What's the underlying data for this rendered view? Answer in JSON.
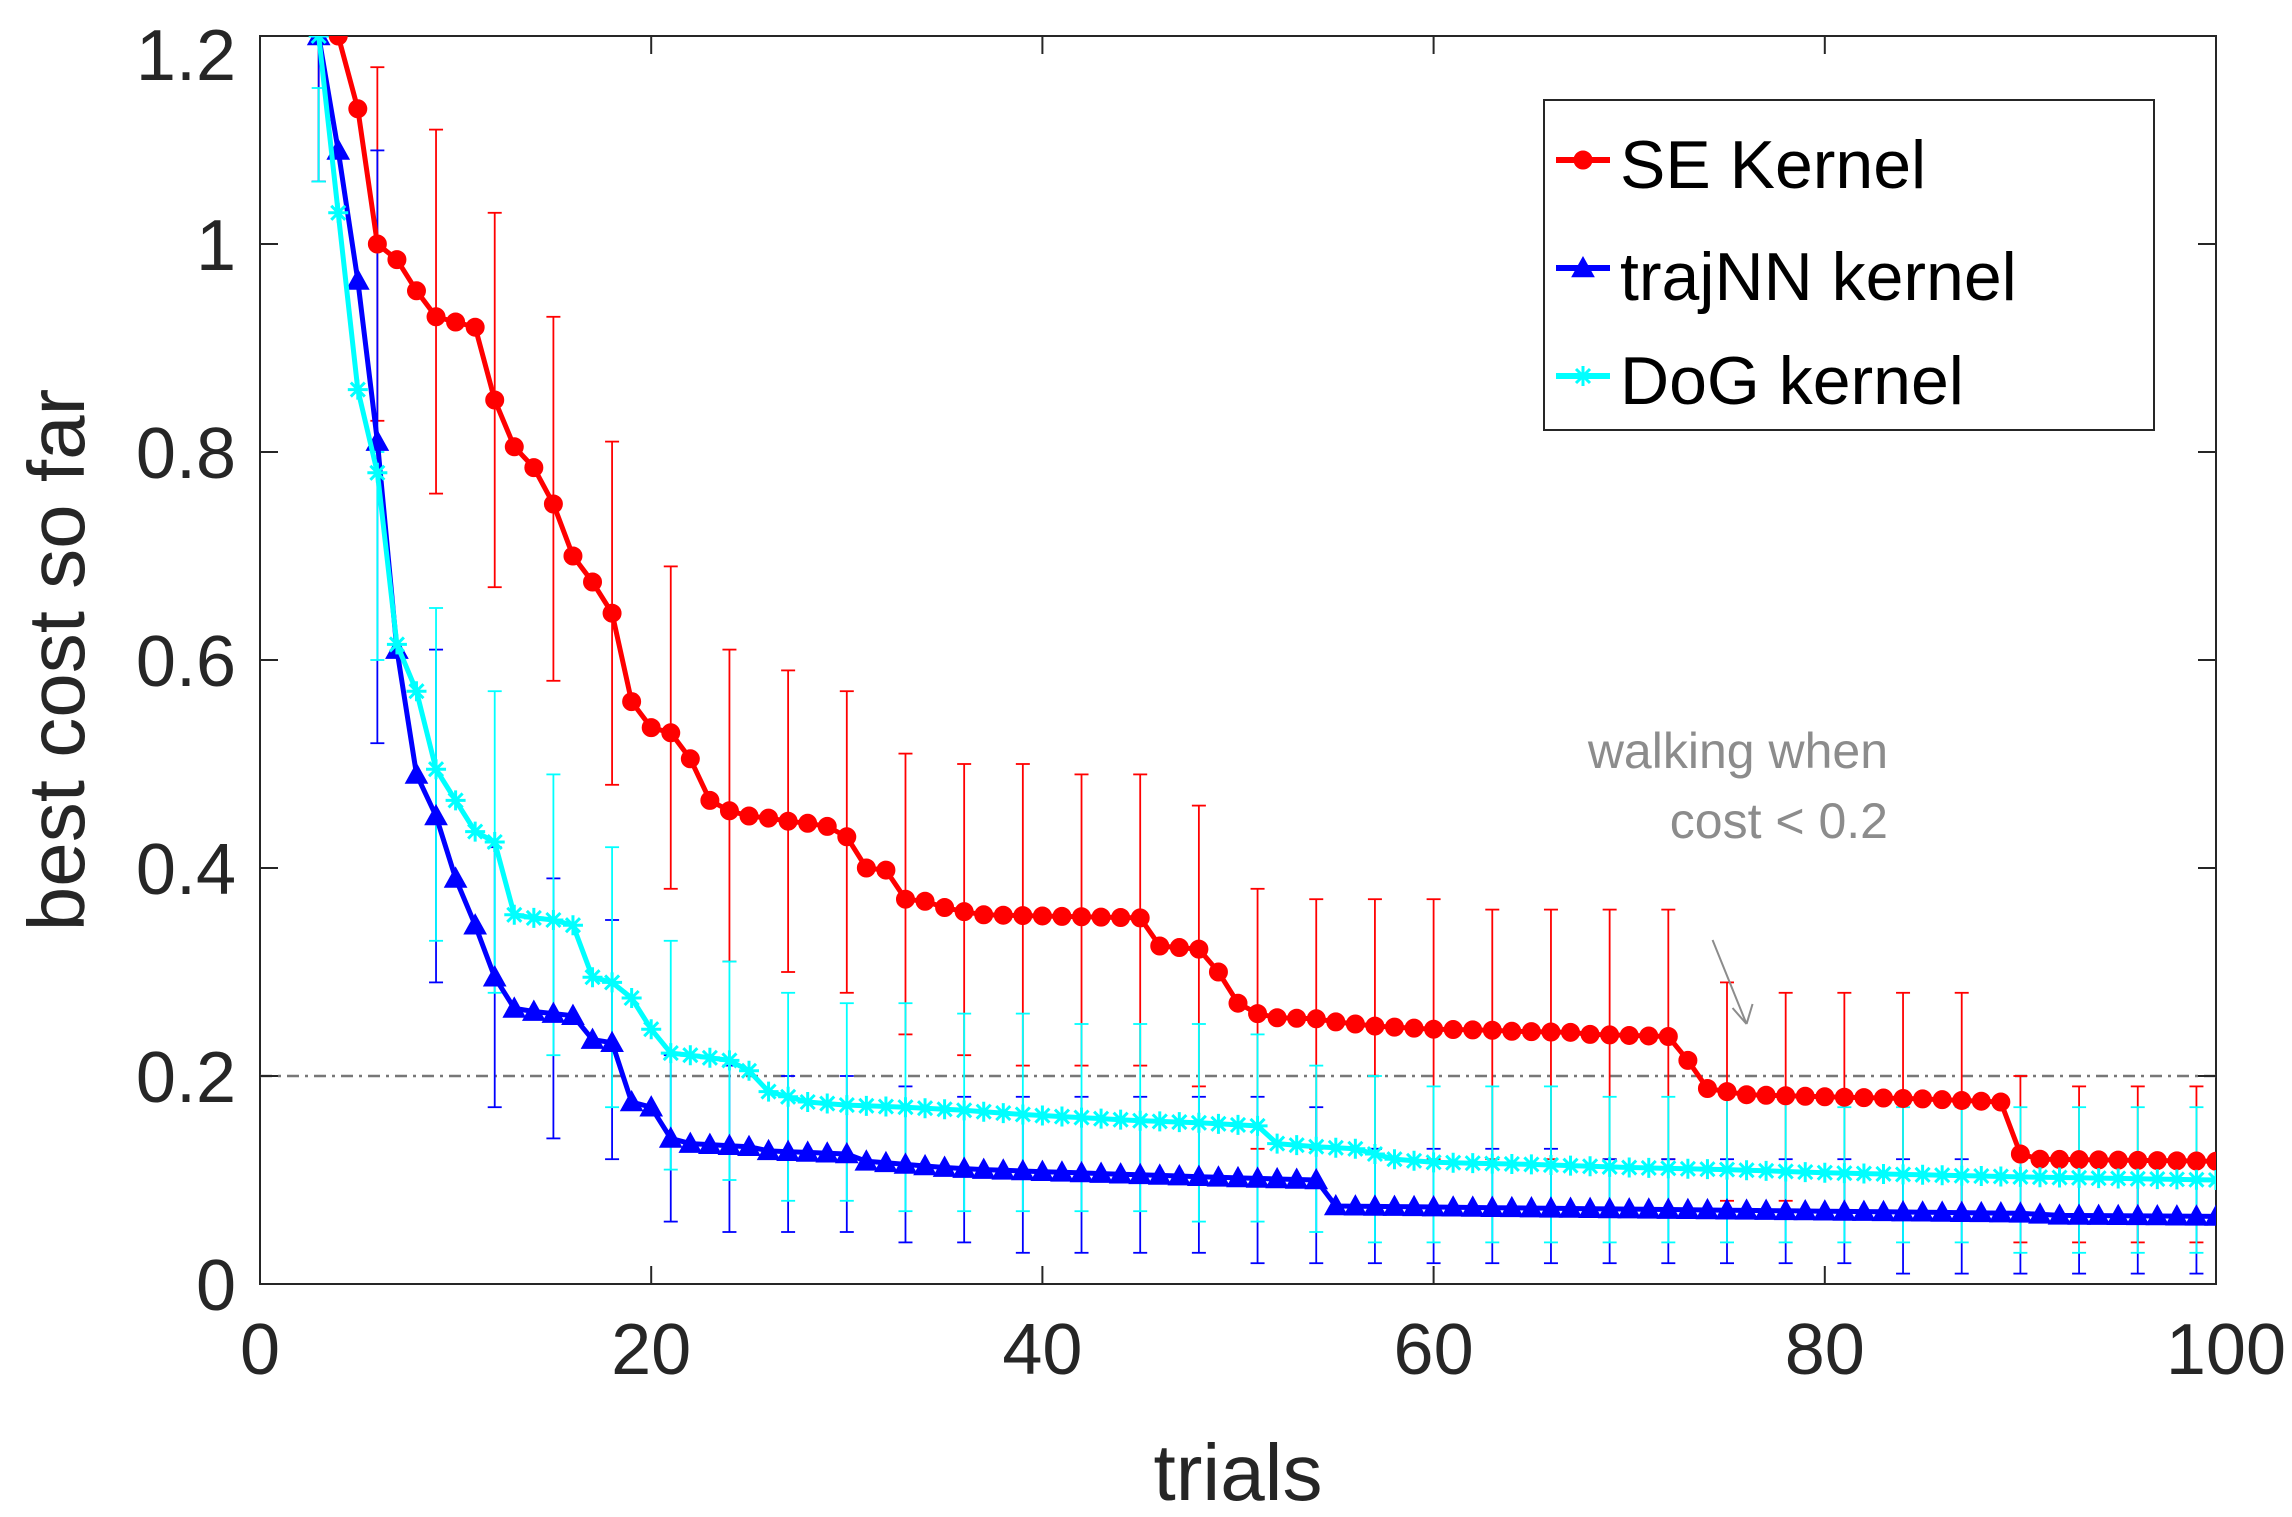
{
  "chart_data": {
    "type": "line",
    "title": "",
    "xlabel": "trials",
    "ylabel": "best cost so far",
    "xlim": [
      0,
      100
    ],
    "ylim": [
      0,
      1.2
    ],
    "xticks": [
      0,
      20,
      40,
      60,
      80,
      100
    ],
    "xtick_labels": [
      "0",
      "20",
      "40",
      "60",
      "80",
      "100"
    ],
    "yticks": [
      0,
      0.2,
      0.4,
      0.6,
      0.8,
      1,
      1.2
    ],
    "ytick_labels": [
      "0",
      "0.2",
      "0.4",
      "0.6",
      "0.8",
      "1",
      "1.2"
    ],
    "grid": false,
    "legend_position": "top-right",
    "reference_line": {
      "y": 0.2,
      "color": "#777777",
      "style": "dash-dot"
    },
    "annotation": {
      "lines": [
        "walking when",
        "cost < 0.2"
      ],
      "points_to": {
        "x": 76,
        "y": 0.25
      },
      "color": "#8c8c8c"
    },
    "series": [
      {
        "name": "SE Kernel",
        "color": "#ff0000",
        "marker": "circle",
        "keypoints": [
          [
            3,
            1.35
          ],
          [
            4,
            1.2
          ],
          [
            5,
            1.13
          ],
          [
            6,
            1.0
          ],
          [
            7,
            0.985
          ],
          [
            8,
            0.955
          ],
          [
            9,
            0.93
          ],
          [
            10,
            0.925
          ],
          [
            11,
            0.92
          ],
          [
            12,
            0.85
          ],
          [
            13,
            0.805
          ],
          [
            14,
            0.785
          ],
          [
            15,
            0.75
          ],
          [
            16,
            0.7
          ],
          [
            17,
            0.675
          ],
          [
            18,
            0.645
          ],
          [
            19,
            0.56
          ],
          [
            20,
            0.535
          ],
          [
            21,
            0.53
          ],
          [
            22,
            0.505
          ],
          [
            23,
            0.465
          ],
          [
            24,
            0.455
          ],
          [
            25,
            0.45
          ],
          [
            26,
            0.448
          ],
          [
            27,
            0.445
          ],
          [
            28,
            0.443
          ],
          [
            29,
            0.44
          ],
          [
            30,
            0.43
          ],
          [
            31,
            0.4
          ],
          [
            32,
            0.398
          ],
          [
            33,
            0.37
          ],
          [
            34,
            0.368
          ],
          [
            35,
            0.362
          ],
          [
            36,
            0.358
          ],
          [
            37,
            0.355
          ],
          [
            45,
            0.352
          ],
          [
            46,
            0.325
          ],
          [
            48,
            0.322
          ],
          [
            49,
            0.3
          ],
          [
            50,
            0.27
          ],
          [
            51,
            0.26
          ],
          [
            52,
            0.256
          ],
          [
            54,
            0.255
          ],
          [
            55,
            0.252
          ],
          [
            56,
            0.25
          ],
          [
            57,
            0.248
          ],
          [
            59,
            0.246
          ],
          [
            60,
            0.245
          ],
          [
            63,
            0.244
          ],
          [
            64,
            0.243
          ],
          [
            67,
            0.242
          ],
          [
            68,
            0.24
          ],
          [
            72,
            0.238
          ],
          [
            73,
            0.215
          ],
          [
            74,
            0.188
          ],
          [
            75,
            0.185
          ],
          [
            76,
            0.182
          ],
          [
            80,
            0.18
          ],
          [
            85,
            0.178
          ],
          [
            89,
            0.175
          ],
          [
            90,
            0.125
          ],
          [
            91,
            0.12
          ],
          [
            100,
            0.118
          ]
        ],
        "error_bars": [
          {
            "x": 3,
            "lo": 1.06,
            "hi": 1.42
          },
          {
            "x": 6,
            "lo": 0.83,
            "hi": 1.17
          },
          {
            "x": 9,
            "lo": 0.76,
            "hi": 1.11
          },
          {
            "x": 12,
            "lo": 0.67,
            "hi": 1.03
          },
          {
            "x": 15,
            "lo": 0.58,
            "hi": 0.93
          },
          {
            "x": 18,
            "lo": 0.48,
            "hi": 0.81
          },
          {
            "x": 21,
            "lo": 0.38,
            "hi": 0.69
          },
          {
            "x": 24,
            "lo": 0.31,
            "hi": 0.61
          },
          {
            "x": 27,
            "lo": 0.3,
            "hi": 0.59
          },
          {
            "x": 30,
            "lo": 0.28,
            "hi": 0.57
          },
          {
            "x": 33,
            "lo": 0.24,
            "hi": 0.51
          },
          {
            "x": 36,
            "lo": 0.22,
            "hi": 0.5
          },
          {
            "x": 39,
            "lo": 0.21,
            "hi": 0.5
          },
          {
            "x": 42,
            "lo": 0.21,
            "hi": 0.49
          },
          {
            "x": 45,
            "lo": 0.21,
            "hi": 0.49
          },
          {
            "x": 48,
            "lo": 0.19,
            "hi": 0.46
          },
          {
            "x": 51,
            "lo": 0.13,
            "hi": 0.38
          },
          {
            "x": 54,
            "lo": 0.13,
            "hi": 0.37
          },
          {
            "x": 57,
            "lo": 0.13,
            "hi": 0.37
          },
          {
            "x": 60,
            "lo": 0.12,
            "hi": 0.37
          },
          {
            "x": 63,
            "lo": 0.12,
            "hi": 0.36
          },
          {
            "x": 66,
            "lo": 0.12,
            "hi": 0.36
          },
          {
            "x": 69,
            "lo": 0.12,
            "hi": 0.36
          },
          {
            "x": 72,
            "lo": 0.12,
            "hi": 0.36
          },
          {
            "x": 75,
            "lo": 0.08,
            "hi": 0.29
          },
          {
            "x": 78,
            "lo": 0.08,
            "hi": 0.28
          },
          {
            "x": 81,
            "lo": 0.07,
            "hi": 0.28
          },
          {
            "x": 84,
            "lo": 0.07,
            "hi": 0.28
          },
          {
            "x": 87,
            "lo": 0.07,
            "hi": 0.28
          },
          {
            "x": 90,
            "lo": 0.04,
            "hi": 0.2
          },
          {
            "x": 93,
            "lo": 0.04,
            "hi": 0.19
          },
          {
            "x": 96,
            "lo": 0.04,
            "hi": 0.19
          },
          {
            "x": 99,
            "lo": 0.04,
            "hi": 0.19
          }
        ]
      },
      {
        "name": "trajNN kernel",
        "color": "#0000ff",
        "marker": "triangle",
        "keypoints": [
          [
            3,
            1.2
          ],
          [
            4,
            1.09
          ],
          [
            5,
            0.965
          ],
          [
            6,
            0.81
          ],
          [
            7,
            0.61
          ],
          [
            8,
            0.49
          ],
          [
            9,
            0.45
          ],
          [
            10,
            0.39
          ],
          [
            11,
            0.345
          ],
          [
            12,
            0.295
          ],
          [
            13,
            0.265
          ],
          [
            14,
            0.262
          ],
          [
            15,
            0.26
          ],
          [
            16,
            0.258
          ],
          [
            17,
            0.235
          ],
          [
            18,
            0.232
          ],
          [
            19,
            0.175
          ],
          [
            20,
            0.17
          ],
          [
            21,
            0.14
          ],
          [
            22,
            0.135
          ],
          [
            25,
            0.132
          ],
          [
            26,
            0.128
          ],
          [
            30,
            0.125
          ],
          [
            31,
            0.118
          ],
          [
            33,
            0.115
          ],
          [
            35,
            0.112
          ],
          [
            37,
            0.11
          ],
          [
            40,
            0.108
          ],
          [
            45,
            0.105
          ],
          [
            50,
            0.102
          ],
          [
            54,
            0.1
          ],
          [
            55,
            0.075
          ],
          [
            60,
            0.074
          ],
          [
            70,
            0.072
          ],
          [
            80,
            0.07
          ],
          [
            90,
            0.068
          ],
          [
            92,
            0.066
          ],
          [
            100,
            0.065
          ]
        ],
        "error_bars": [
          {
            "x": 3,
            "lo": 1.06,
            "hi": 1.33
          },
          {
            "x": 6,
            "lo": 0.52,
            "hi": 1.09
          },
          {
            "x": 9,
            "lo": 0.29,
            "hi": 0.61
          },
          {
            "x": 12,
            "lo": 0.17,
            "hi": 0.42
          },
          {
            "x": 15,
            "lo": 0.14,
            "hi": 0.39
          },
          {
            "x": 18,
            "lo": 0.12,
            "hi": 0.35
          },
          {
            "x": 21,
            "lo": 0.06,
            "hi": 0.22
          },
          {
            "x": 24,
            "lo": 0.05,
            "hi": 0.21
          },
          {
            "x": 27,
            "lo": 0.05,
            "hi": 0.2
          },
          {
            "x": 30,
            "lo": 0.05,
            "hi": 0.2
          },
          {
            "x": 33,
            "lo": 0.04,
            "hi": 0.19
          },
          {
            "x": 36,
            "lo": 0.04,
            "hi": 0.18
          },
          {
            "x": 39,
            "lo": 0.03,
            "hi": 0.18
          },
          {
            "x": 42,
            "lo": 0.03,
            "hi": 0.18
          },
          {
            "x": 45,
            "lo": 0.03,
            "hi": 0.18
          },
          {
            "x": 48,
            "lo": 0.03,
            "hi": 0.18
          },
          {
            "x": 51,
            "lo": 0.02,
            "hi": 0.18
          },
          {
            "x": 54,
            "lo": 0.02,
            "hi": 0.17
          },
          {
            "x": 57,
            "lo": 0.02,
            "hi": 0.13
          },
          {
            "x": 60,
            "lo": 0.02,
            "hi": 0.13
          },
          {
            "x": 63,
            "lo": 0.02,
            "hi": 0.13
          },
          {
            "x": 66,
            "lo": 0.02,
            "hi": 0.13
          },
          {
            "x": 69,
            "lo": 0.02,
            "hi": 0.12
          },
          {
            "x": 72,
            "lo": 0.02,
            "hi": 0.12
          },
          {
            "x": 75,
            "lo": 0.02,
            "hi": 0.12
          },
          {
            "x": 78,
            "lo": 0.02,
            "hi": 0.12
          },
          {
            "x": 81,
            "lo": 0.02,
            "hi": 0.12
          },
          {
            "x": 84,
            "lo": 0.01,
            "hi": 0.12
          },
          {
            "x": 87,
            "lo": 0.01,
            "hi": 0.12
          },
          {
            "x": 90,
            "lo": 0.01,
            "hi": 0.12
          },
          {
            "x": 93,
            "lo": 0.01,
            "hi": 0.12
          },
          {
            "x": 96,
            "lo": 0.01,
            "hi": 0.12
          },
          {
            "x": 99,
            "lo": 0.01,
            "hi": 0.12
          }
        ]
      },
      {
        "name": "DoG kernel",
        "color": "#00ffff",
        "marker": "asterisk",
        "keypoints": [
          [
            3,
            1.2
          ],
          [
            4,
            1.03
          ],
          [
            5,
            0.86
          ],
          [
            6,
            0.78
          ],
          [
            7,
            0.615
          ],
          [
            8,
            0.57
          ],
          [
            9,
            0.495
          ],
          [
            10,
            0.465
          ],
          [
            11,
            0.435
          ],
          [
            12,
            0.425
          ],
          [
            13,
            0.355
          ],
          [
            14,
            0.352
          ],
          [
            15,
            0.35
          ],
          [
            16,
            0.345
          ],
          [
            17,
            0.295
          ],
          [
            18,
            0.29
          ],
          [
            19,
            0.275
          ],
          [
            20,
            0.245
          ],
          [
            21,
            0.222
          ],
          [
            22,
            0.22
          ],
          [
            24,
            0.215
          ],
          [
            25,
            0.205
          ],
          [
            26,
            0.185
          ],
          [
            27,
            0.18
          ],
          [
            28,
            0.175
          ],
          [
            30,
            0.172
          ],
          [
            33,
            0.17
          ],
          [
            36,
            0.167
          ],
          [
            39,
            0.163
          ],
          [
            42,
            0.16
          ],
          [
            45,
            0.157
          ],
          [
            48,
            0.155
          ],
          [
            51,
            0.152
          ],
          [
            52,
            0.135
          ],
          [
            54,
            0.132
          ],
          [
            56,
            0.13
          ],
          [
            58,
            0.12
          ],
          [
            60,
            0.117
          ],
          [
            65,
            0.115
          ],
          [
            70,
            0.112
          ],
          [
            75,
            0.11
          ],
          [
            80,
            0.107
          ],
          [
            85,
            0.105
          ],
          [
            90,
            0.103
          ],
          [
            100,
            0.1
          ]
        ],
        "error_bars": [
          {
            "x": 3,
            "lo": 1.06,
            "hi": 1.15
          },
          {
            "x": 6,
            "lo": 0.6,
            "hi": 0.8
          },
          {
            "x": 9,
            "lo": 0.33,
            "hi": 0.65
          },
          {
            "x": 12,
            "lo": 0.28,
            "hi": 0.57
          },
          {
            "x": 15,
            "lo": 0.22,
            "hi": 0.49
          },
          {
            "x": 18,
            "lo": 0.17,
            "hi": 0.42
          },
          {
            "x": 21,
            "lo": 0.11,
            "hi": 0.33
          },
          {
            "x": 24,
            "lo": 0.1,
            "hi": 0.31
          },
          {
            "x": 27,
            "lo": 0.08,
            "hi": 0.28
          },
          {
            "x": 30,
            "lo": 0.08,
            "hi": 0.27
          },
          {
            "x": 33,
            "lo": 0.07,
            "hi": 0.27
          },
          {
            "x": 36,
            "lo": 0.07,
            "hi": 0.26
          },
          {
            "x": 39,
            "lo": 0.07,
            "hi": 0.26
          },
          {
            "x": 42,
            "lo": 0.07,
            "hi": 0.25
          },
          {
            "x": 45,
            "lo": 0.07,
            "hi": 0.25
          },
          {
            "x": 48,
            "lo": 0.06,
            "hi": 0.25
          },
          {
            "x": 51,
            "lo": 0.06,
            "hi": 0.24
          },
          {
            "x": 54,
            "lo": 0.05,
            "hi": 0.21
          },
          {
            "x": 57,
            "lo": 0.04,
            "hi": 0.2
          },
          {
            "x": 60,
            "lo": 0.04,
            "hi": 0.19
          },
          {
            "x": 63,
            "lo": 0.04,
            "hi": 0.19
          },
          {
            "x": 66,
            "lo": 0.04,
            "hi": 0.19
          },
          {
            "x": 69,
            "lo": 0.04,
            "hi": 0.18
          },
          {
            "x": 72,
            "lo": 0.04,
            "hi": 0.18
          },
          {
            "x": 75,
            "lo": 0.04,
            "hi": 0.18
          },
          {
            "x": 78,
            "lo": 0.04,
            "hi": 0.18
          },
          {
            "x": 81,
            "lo": 0.04,
            "hi": 0.17
          },
          {
            "x": 84,
            "lo": 0.04,
            "hi": 0.17
          },
          {
            "x": 87,
            "lo": 0.04,
            "hi": 0.17
          },
          {
            "x": 90,
            "lo": 0.03,
            "hi": 0.17
          },
          {
            "x": 93,
            "lo": 0.03,
            "hi": 0.17
          },
          {
            "x": 96,
            "lo": 0.03,
            "hi": 0.17
          },
          {
            "x": 99,
            "lo": 0.03,
            "hi": 0.17
          }
        ]
      }
    ]
  }
}
